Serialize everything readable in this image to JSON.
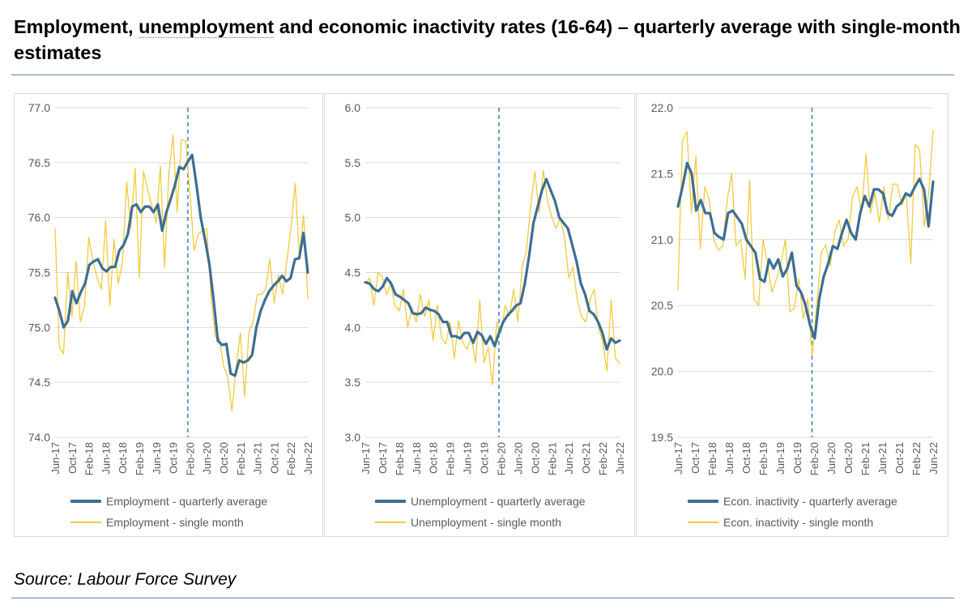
{
  "title": {
    "part1": "Employment, ",
    "underlined": "unemployment",
    "part2": " and economic inactivity rates (16-64) – quarterly average with single-month estimates"
  },
  "source": "Source: Labour Force Survey",
  "colors": {
    "quarterly": "#3d6e94",
    "single": "#f2cb3a",
    "grid": "#d9d9d9",
    "axis_text": "#595959",
    "marker": "#2e75b6"
  },
  "chart_data": [
    {
      "type": "line",
      "title": "",
      "xlabel": "",
      "ylabel": "",
      "ylim": [
        74.0,
        77.0
      ],
      "yticks": [
        74.0,
        74.5,
        75.0,
        75.5,
        76.0,
        76.5,
        77.0
      ],
      "x_tick_labels": [
        "Jun-17",
        "Oct-17",
        "Feb-18",
        "Jun-18",
        "Oct-18",
        "Feb-19",
        "Jun-19",
        "Oct-19",
        "Feb-20",
        "Jun-20",
        "Oct-20",
        "Feb-21",
        "Jun-21",
        "Oct-21",
        "Feb-22",
        "Jun-22"
      ],
      "marker_label": "Feb-20",
      "series": [
        {
          "name": "Employment - quarterly average",
          "style": "quarterly",
          "values": [
            75.27,
            75.15,
            75.0,
            75.06,
            75.33,
            75.22,
            75.32,
            75.4,
            75.57,
            75.6,
            75.62,
            75.54,
            75.51,
            75.55,
            75.55,
            75.7,
            75.75,
            75.85,
            76.1,
            76.12,
            76.05,
            76.1,
            76.1,
            76.05,
            76.12,
            75.88,
            76.05,
            76.17,
            76.3,
            76.46,
            76.44,
            76.51,
            76.57,
            76.3,
            76.0,
            75.8,
            75.58,
            75.25,
            74.88,
            74.84,
            74.85,
            74.58,
            74.56,
            74.7,
            74.68,
            74.7,
            74.75,
            75.0,
            75.15,
            75.25,
            75.33,
            75.38,
            75.42,
            75.47,
            75.42,
            75.45,
            75.62,
            75.63,
            75.86,
            75.5
          ]
        },
        {
          "name": "Employment - single month",
          "style": "single",
          "values": [
            75.9,
            74.82,
            74.76,
            75.5,
            75.1,
            75.6,
            75.05,
            75.2,
            75.82,
            75.6,
            75.45,
            75.35,
            75.97,
            75.2,
            75.8,
            75.4,
            75.6,
            76.32,
            75.9,
            76.45,
            75.45,
            76.42,
            76.25,
            76.1,
            75.95,
            76.47,
            75.55,
            76.4,
            76.75,
            76.05,
            76.71,
            76.7,
            76.23,
            75.7,
            75.85,
            75.88,
            75.9,
            75.3,
            74.92,
            74.9,
            74.65,
            74.55,
            74.24,
            74.65,
            74.95,
            74.37,
            74.95,
            75.05,
            75.3,
            75.3,
            75.35,
            75.62,
            75.22,
            75.48,
            75.3,
            75.6,
            75.9,
            76.31,
            75.65,
            76.02,
            75.26
          ]
        }
      ]
    },
    {
      "type": "line",
      "title": "",
      "xlabel": "",
      "ylabel": "",
      "ylim": [
        3.0,
        6.0
      ],
      "yticks": [
        3.0,
        3.5,
        4.0,
        4.5,
        5.0,
        5.5,
        6.0
      ],
      "x_tick_labels": [
        "Jun-17",
        "Oct-17",
        "Feb-18",
        "Jun-18",
        "Oct-18",
        "Feb-19",
        "Jun-19",
        "Oct-19",
        "Feb-20",
        "Jun-20",
        "Oct-20",
        "Feb-21",
        "Jun-21",
        "Oct-21",
        "Feb-22",
        "Jun-22"
      ],
      "marker_label": "Feb-20",
      "series": [
        {
          "name": "Unemployment - quarterly average",
          "style": "quarterly",
          "values": [
            4.41,
            4.4,
            4.35,
            4.33,
            4.37,
            4.45,
            4.4,
            4.3,
            4.28,
            4.25,
            4.22,
            4.13,
            4.12,
            4.13,
            4.18,
            4.16,
            4.15,
            4.12,
            4.05,
            4.05,
            3.92,
            3.92,
            3.9,
            3.95,
            3.95,
            3.86,
            3.96,
            3.93,
            3.85,
            3.92,
            3.83,
            3.95,
            4.05,
            4.11,
            4.15,
            4.2,
            4.22,
            4.4,
            4.65,
            4.95,
            5.1,
            5.25,
            5.35,
            5.25,
            5.15,
            5.0,
            4.95,
            4.9,
            4.75,
            4.6,
            4.4,
            4.3,
            4.15,
            4.12,
            4.05,
            3.95,
            3.8,
            3.9,
            3.86,
            3.88
          ]
        },
        {
          "name": "Unemployment - single month",
          "style": "single",
          "values": [
            4.4,
            4.45,
            4.2,
            4.5,
            4.46,
            4.3,
            4.4,
            4.2,
            4.15,
            4.35,
            4.0,
            4.18,
            4.05,
            4.3,
            4.1,
            4.25,
            3.88,
            4.2,
            3.9,
            3.85,
            4.05,
            3.72,
            4.06,
            3.86,
            3.8,
            3.92,
            3.68,
            4.25,
            3.68,
            3.82,
            3.48,
            4.05,
            3.95,
            4.2,
            4.1,
            4.35,
            4.05,
            4.55,
            4.7,
            5.1,
            5.42,
            5.05,
            5.43,
            5.15,
            5.0,
            4.9,
            5.0,
            4.82,
            4.45,
            4.55,
            4.25,
            4.1,
            4.05,
            4.25,
            4.35,
            4.0,
            3.87,
            3.6,
            4.25,
            3.72,
            3.67
          ]
        }
      ]
    },
    {
      "type": "line",
      "title": "",
      "xlabel": "",
      "ylabel": "",
      "ylim": [
        19.5,
        22.0
      ],
      "yticks": [
        19.5,
        20.0,
        20.5,
        21.0,
        21.5,
        22.0
      ],
      "x_tick_labels": [
        "Jun-17",
        "Oct-17",
        "Feb-18",
        "Jun-18",
        "Oct-18",
        "Feb-19",
        "Jun-19",
        "Oct-19",
        "Feb-20",
        "Jun-20",
        "Oct-20",
        "Feb-21",
        "Jun-21",
        "Oct-21",
        "Feb-22",
        "Jun-22"
      ],
      "marker_label": "Feb-20",
      "series": [
        {
          "name": "Econ. inactivity - quarterly average",
          "style": "quarterly",
          "values": [
            21.25,
            21.4,
            21.58,
            21.5,
            21.22,
            21.3,
            21.2,
            21.2,
            21.05,
            21.02,
            21.0,
            21.2,
            21.22,
            21.17,
            21.12,
            21.0,
            20.95,
            20.9,
            20.7,
            20.68,
            20.85,
            20.78,
            20.85,
            20.72,
            20.78,
            20.9,
            20.65,
            20.6,
            20.5,
            20.35,
            20.25,
            20.55,
            20.72,
            20.82,
            20.95,
            20.93,
            21.05,
            21.15,
            21.05,
            21.0,
            21.2,
            21.33,
            21.25,
            21.38,
            21.38,
            21.35,
            21.2,
            21.18,
            21.25,
            21.28,
            21.35,
            21.33,
            21.4,
            21.46,
            21.38,
            21.1,
            21.44
          ]
        },
        {
          "name": "Econ. inactivity - single month",
          "style": "single",
          "values": [
            20.62,
            21.75,
            21.82,
            21.2,
            21.63,
            20.93,
            21.4,
            21.3,
            21.0,
            20.92,
            20.95,
            21.3,
            21.5,
            20.95,
            21.0,
            20.7,
            21.45,
            20.55,
            20.5,
            21.0,
            20.82,
            20.6,
            20.7,
            20.82,
            21.0,
            20.45,
            20.48,
            20.7,
            20.4,
            20.55,
            20.12,
            20.5,
            20.9,
            20.96,
            20.8,
            21.05,
            21.15,
            20.95,
            21.0,
            21.33,
            21.4,
            21.2,
            21.65,
            21.2,
            21.35,
            21.13,
            21.4,
            21.15,
            21.42,
            21.42,
            21.26,
            21.35,
            20.82,
            21.72,
            21.68,
            21.1,
            21.35,
            21.83
          ]
        }
      ]
    }
  ]
}
